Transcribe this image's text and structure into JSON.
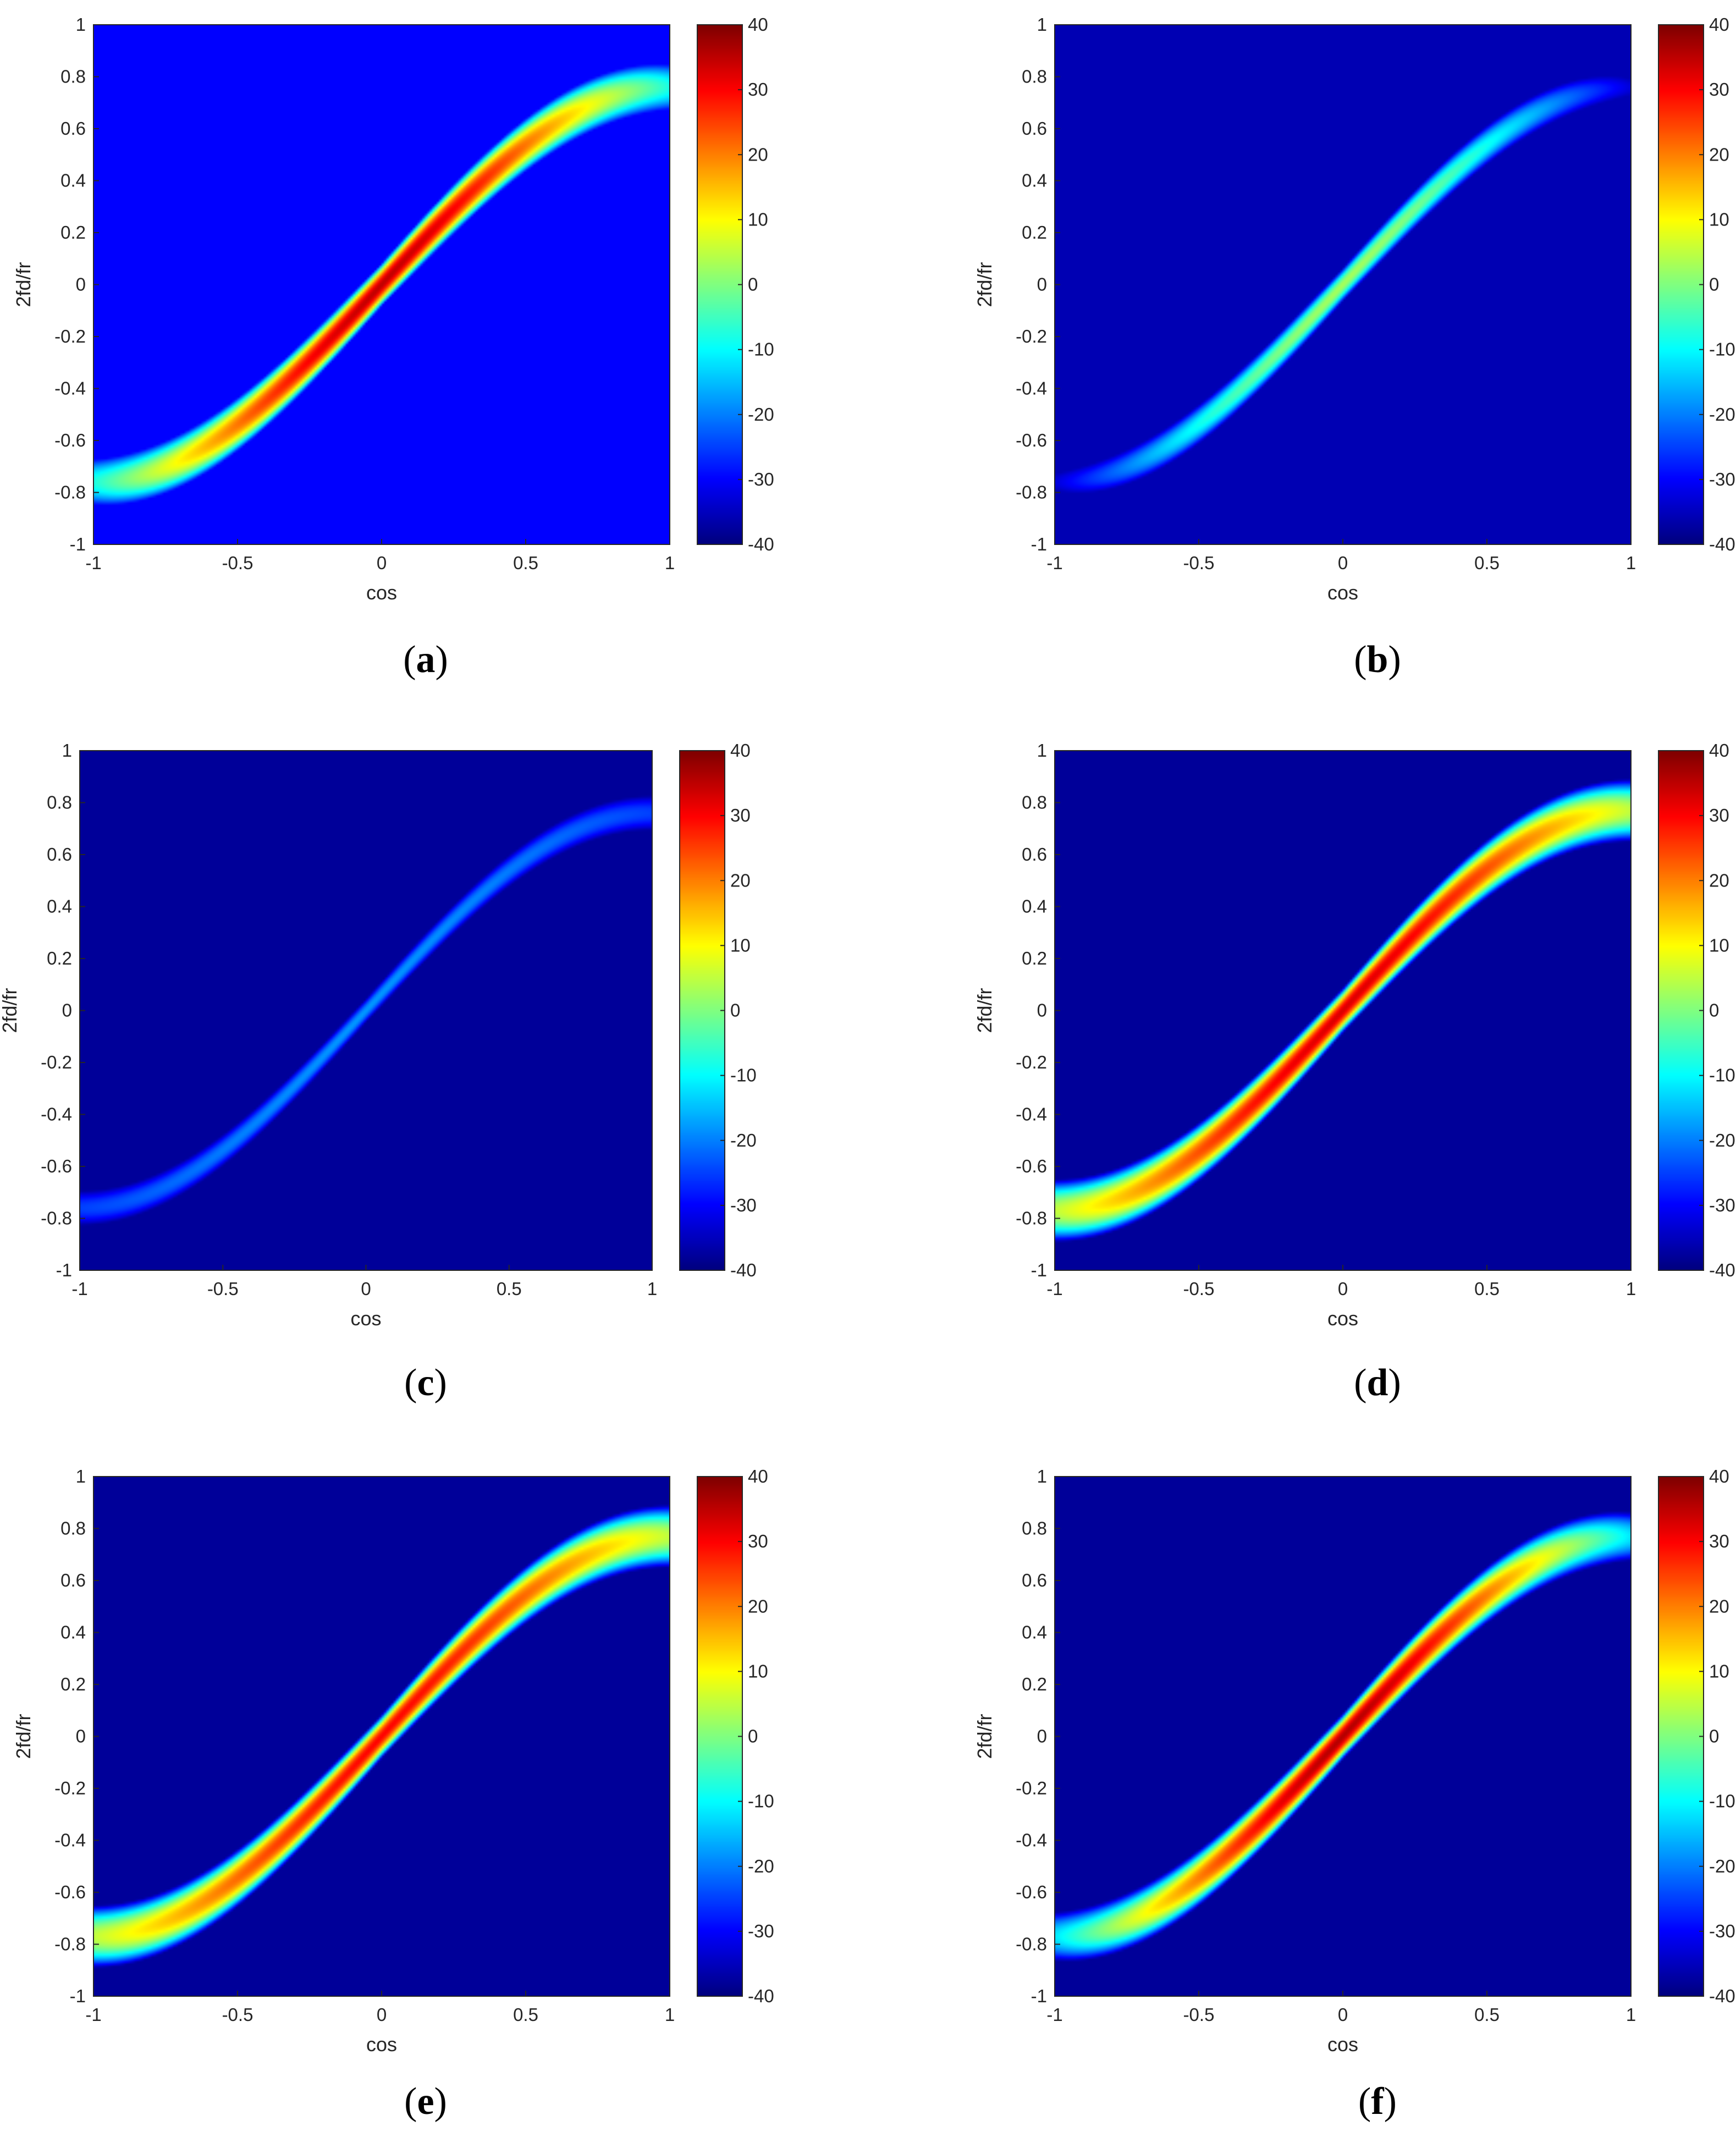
{
  "chart_data": [
    {
      "panel": "a",
      "caption": "a",
      "type": "heatmap",
      "xlabel": "cos",
      "ylabel": "2fd/fr",
      "xlim": [
        -1,
        1
      ],
      "ylim": [
        -1,
        1
      ],
      "xticks": [
        "-1",
        "-0.5",
        "0",
        "0.5",
        "1"
      ],
      "yticks": [
        "-1",
        "-0.8",
        "-0.6",
        "-0.4",
        "-0.2",
        "0",
        "0.2",
        "0.4",
        "0.6",
        "0.8",
        "1"
      ],
      "colorbar": {
        "min": -40,
        "max": 40,
        "ticks": [
          "40",
          "30",
          "20",
          "10",
          "0",
          "-10",
          "-20",
          "-30",
          "-40"
        ]
      },
      "ridge": {
        "peak_db": 35,
        "endpoint_db": -8,
        "amplitude": 0.76
      },
      "background_db": -30
    },
    {
      "panel": "b",
      "caption": "b",
      "type": "heatmap",
      "xlabel": "cos",
      "ylabel": "2fd/fr",
      "xlim": [
        -1,
        1
      ],
      "ylim": [
        -1,
        1
      ],
      "xticks": [
        "-1",
        "-0.5",
        "0",
        "0.5",
        "1"
      ],
      "yticks": [
        "-1",
        "-0.8",
        "-0.6",
        "-0.4",
        "-0.2",
        "0",
        "0.2",
        "0.4",
        "0.6",
        "0.8",
        "1"
      ],
      "colorbar": {
        "min": -40,
        "max": 40,
        "ticks": [
          "40",
          "30",
          "20",
          "10",
          "0",
          "-10",
          "-20",
          "-30",
          "-40"
        ]
      },
      "ridge": {
        "peak_db": 3,
        "endpoint_db": -33,
        "amplitude": 0.76
      },
      "background_db": -36
    },
    {
      "panel": "c",
      "caption": "c",
      "type": "heatmap",
      "xlabel": "cos",
      "ylabel": "2fd/fr",
      "xlim": [
        -1,
        1
      ],
      "ylim": [
        -1,
        1
      ],
      "xticks": [
        "-1",
        "-0.5",
        "0",
        "0.5",
        "1"
      ],
      "yticks": [
        "-1",
        "-0.8",
        "-0.6",
        "-0.4",
        "-0.2",
        "0",
        "0.2",
        "0.4",
        "0.6",
        "0.8",
        "1"
      ],
      "colorbar": {
        "min": -40,
        "max": 40,
        "ticks": [
          "40",
          "30",
          "20",
          "10",
          "0",
          "-10",
          "-20",
          "-30",
          "-40"
        ]
      },
      "ridge": {
        "peak_db": -18,
        "endpoint_db": -25,
        "amplitude": 0.76
      },
      "background_db": -38
    },
    {
      "panel": "d",
      "caption": "d",
      "type": "heatmap",
      "xlabel": "cos",
      "ylabel": "2fd/fr",
      "xlim": [
        -1,
        1
      ],
      "ylim": [
        -1,
        1
      ],
      "xticks": [
        "-1",
        "-0.5",
        "0",
        "0.5",
        "1"
      ],
      "yticks": [
        "-1",
        "-0.8",
        "-0.6",
        "-0.4",
        "-0.2",
        "0",
        "0.2",
        "0.4",
        "0.6",
        "0.8",
        "1"
      ],
      "colorbar": {
        "min": -40,
        "max": 40,
        "ticks": [
          "40",
          "30",
          "20",
          "10",
          "0",
          "-10",
          "-20",
          "-30",
          "-40"
        ]
      },
      "ridge": {
        "peak_db": 33,
        "endpoint_db": 5,
        "amplitude": 0.77
      },
      "background_db": -38
    },
    {
      "panel": "e",
      "caption": "e",
      "type": "heatmap",
      "xlabel": "cos",
      "ylabel": "2fd/fr",
      "xlim": [
        -1,
        1
      ],
      "ylim": [
        -1,
        1
      ],
      "xticks": [
        "-1",
        "-0.5",
        "0",
        "0.5",
        "1"
      ],
      "yticks": [
        "-1",
        "-0.8",
        "-0.6",
        "-0.4",
        "-0.2",
        "0",
        "0.2",
        "0.4",
        "0.6",
        "0.8",
        "1"
      ],
      "colorbar": {
        "min": -40,
        "max": 40,
        "ticks": [
          "40",
          "30",
          "20",
          "10",
          "0",
          "-10",
          "-20",
          "-30",
          "-40"
        ]
      },
      "ridge": {
        "peak_db": 30,
        "endpoint_db": 5,
        "amplitude": 0.77
      },
      "background_db": -38
    },
    {
      "panel": "f",
      "caption": "f",
      "type": "heatmap",
      "xlabel": "cos",
      "ylabel": "2fd/fr",
      "xlim": [
        -1,
        1
      ],
      "ylim": [
        -1,
        1
      ],
      "xticks": [
        "-1",
        "-0.5",
        "0",
        "0.5",
        "1"
      ],
      "yticks": [
        "-1",
        "-0.8",
        "-0.6",
        "-0.4",
        "-0.2",
        "0",
        "0.2",
        "0.4",
        "0.6",
        "0.8",
        "1"
      ],
      "colorbar": {
        "min": -40,
        "max": 40,
        "ticks": [
          "40",
          "30",
          "20",
          "10",
          "0",
          "-10",
          "-20",
          "-30",
          "-40"
        ]
      },
      "ridge": {
        "peak_db": 36,
        "endpoint_db": -12,
        "amplitude": 0.77
      },
      "background_db": -38
    }
  ]
}
